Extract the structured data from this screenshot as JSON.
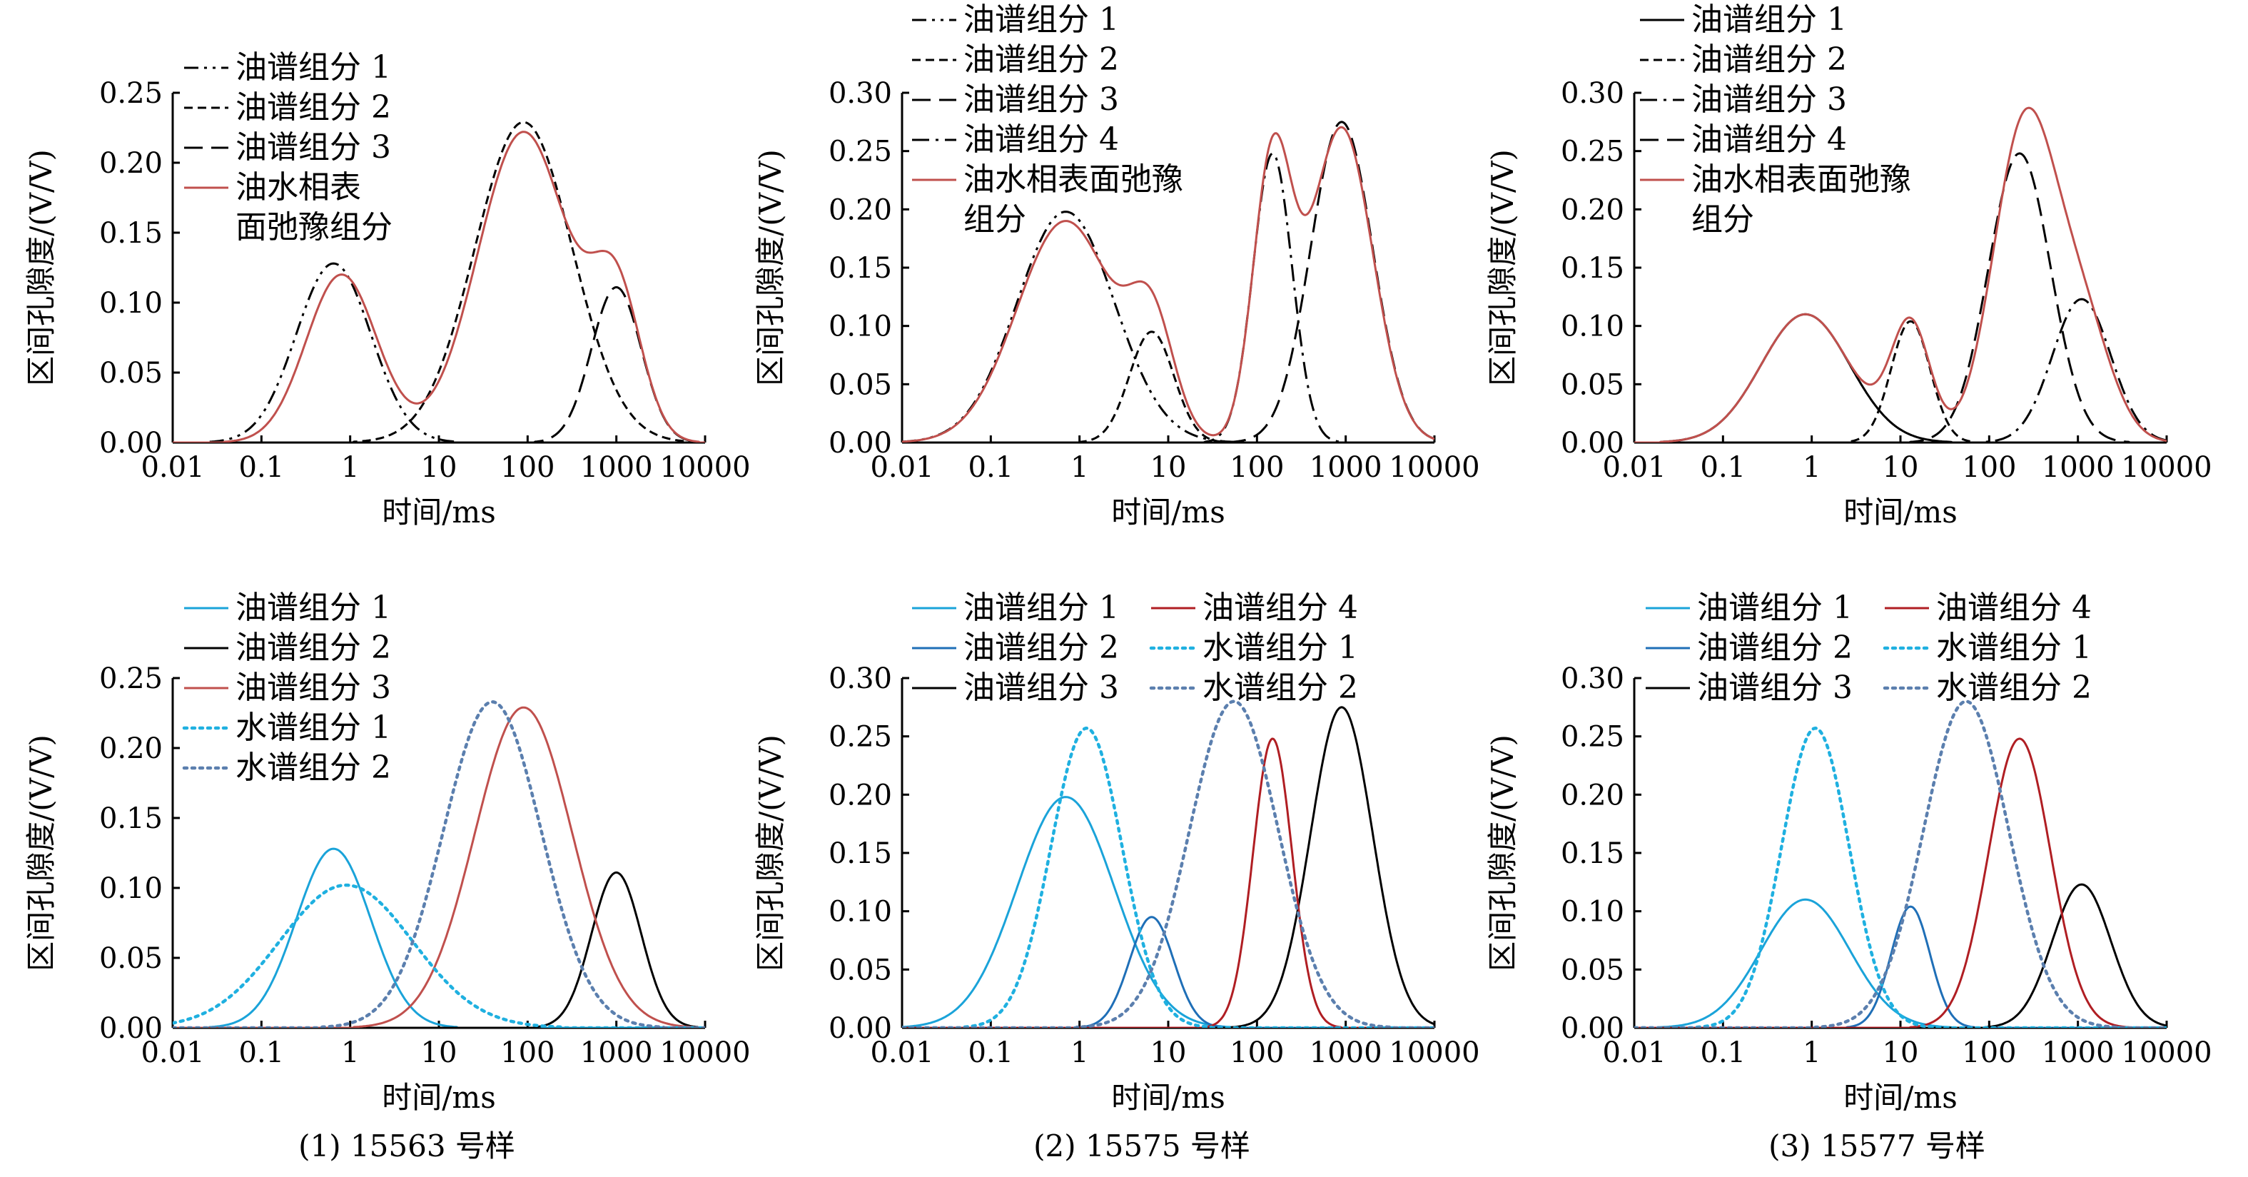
{
  "colors": {
    "bulk": "#c0504d",
    "oil_light_blue": "#1aa3d9",
    "oil_dark_blue": "#1f6fb7",
    "oil_black": "#000000",
    "oil_red": "#b01e23",
    "water_light": "#1fb0e0",
    "water_gray": "#5b7fae"
  },
  "captions": [
    "(1) 15563 号样",
    "(2) 15575 号样",
    "(3) 15577 号样"
  ],
  "chart_data": [
    {
      "type": "line",
      "panel": "top-1",
      "xlabel": "时间/ms",
      "ylabel": "区间孔隙度/(V/V)",
      "xscale": "log",
      "xlim": [
        0.01,
        10000
      ],
      "ylim": [
        0,
        0.25
      ],
      "xticks": [
        "0.01",
        "0.1",
        "1",
        "10",
        "100",
        "1000",
        "10000"
      ],
      "yticks": [
        "0.00",
        "0.05",
        "0.10",
        "0.15",
        "0.20",
        "0.25"
      ],
      "legend_placement": "top-left",
      "series": [
        {
          "name": "油谱组分 1",
          "style": "dashdotdot",
          "color": "#000000",
          "components": [
            [
              0.65,
              0.128,
              0.42
            ]
          ]
        },
        {
          "name": "油谱组分 2",
          "style": "dense-dash",
          "color": "#000000",
          "components": [
            [
              90,
              0.229,
              0.55
            ]
          ]
        },
        {
          "name": "油谱组分 3",
          "style": "long-dash",
          "color": "#000000",
          "components": [
            [
              1000,
              0.111,
              0.28
            ]
          ]
        },
        {
          "name": "油水相表面弛豫组分",
          "style": "solid",
          "color": "#c0504d",
          "components": [
            [
              0.8,
              0.12,
              0.4
            ],
            [
              90,
              0.222,
              0.52
            ],
            [
              1000,
              0.1,
              0.28
            ]
          ]
        }
      ]
    },
    {
      "type": "line",
      "panel": "top-2",
      "xlabel": "时间/ms",
      "ylabel": "区间孔隙度/(V/V)",
      "xscale": "log",
      "xlim": [
        0.01,
        10000
      ],
      "ylim": [
        0,
        0.3
      ],
      "xticks": [
        "0.01",
        "0.1",
        "1",
        "10",
        "100",
        "1000",
        "10000"
      ],
      "yticks": [
        "0.00",
        "0.05",
        "0.10",
        "0.15",
        "0.20",
        "0.25",
        "0.30"
      ],
      "legend_placement": "top-left",
      "series": [
        {
          "name": "油谱组分 1",
          "style": "dashdotdot",
          "color": "#000000",
          "components": [
            [
              0.7,
              0.198,
              0.55
            ]
          ]
        },
        {
          "name": "油谱组分 2",
          "style": "dense-dash",
          "color": "#000000",
          "components": [
            [
              6.5,
              0.095,
              0.25
            ]
          ]
        },
        {
          "name": "油谱组分 3",
          "style": "long-dash",
          "color": "#000000",
          "components": [
            [
              900,
              0.275,
              0.35
            ]
          ]
        },
        {
          "name": "油谱组分 4",
          "style": "dashdot",
          "color": "#000000",
          "components": [
            [
              150,
              0.248,
              0.22
            ]
          ]
        },
        {
          "name": "油水相表面弛豫组分",
          "style": "solid",
          "color": "#c0504d",
          "components": [
            [
              0.7,
              0.19,
              0.55
            ],
            [
              6.5,
              0.09,
              0.25
            ],
            [
              150,
              0.24,
              0.22
            ],
            [
              900,
              0.27,
              0.35
            ]
          ]
        }
      ]
    },
    {
      "type": "line",
      "panel": "top-3",
      "xlabel": "时间/ms",
      "ylabel": "区间孔隙度/(V/V)",
      "xscale": "log",
      "xlim": [
        0.01,
        10000
      ],
      "ylim": [
        0,
        0.3
      ],
      "xticks": [
        "0.01",
        "0.1",
        "1",
        "10",
        "100",
        "1000",
        "10000"
      ],
      "yticks": [
        "0.00",
        "0.05",
        "0.10",
        "0.15",
        "0.20",
        "0.25",
        "0.30"
      ],
      "legend_placement": "top-left",
      "series": [
        {
          "name": "油谱组分 1",
          "style": "solid",
          "color": "#000000",
          "components": [
            [
              0.85,
              0.11,
              0.5
            ]
          ]
        },
        {
          "name": "油谱组分 2",
          "style": "dense-dash",
          "color": "#000000",
          "components": [
            [
              13,
              0.104,
              0.22
            ]
          ]
        },
        {
          "name": "油谱组分 3",
          "style": "dashdot",
          "color": "#000000",
          "components": [
            [
              1100,
              0.123,
              0.33
            ]
          ]
        },
        {
          "name": "油谱组分 4",
          "style": "long-dash",
          "color": "#000000",
          "components": [
            [
              220,
              0.248,
              0.35
            ]
          ]
        },
        {
          "name": "油水相表面弛豫组分",
          "style": "solid",
          "color": "#c0504d",
          "components": [
            [
              0.85,
              0.11,
              0.5
            ],
            [
              13,
              0.1,
              0.22
            ],
            [
              250,
              0.27,
              0.35
            ],
            [
              1100,
              0.1,
              0.33
            ]
          ]
        }
      ]
    },
    {
      "type": "line",
      "panel": "bottom-1",
      "xlabel": "时间/ms",
      "ylabel": "区间孔隙度/(V/V)",
      "xscale": "log",
      "xlim": [
        0.01,
        10000
      ],
      "ylim": [
        0,
        0.25
      ],
      "xticks": [
        "0.01",
        "0.1",
        "1",
        "10",
        "100",
        "1000",
        "10000"
      ],
      "yticks": [
        "0.00",
        "0.05",
        "0.10",
        "0.15",
        "0.20",
        "0.25"
      ],
      "legend_placement": "top-center",
      "series": [
        {
          "name": "油谱组分 1",
          "style": "solid",
          "color": "#1aa3d9",
          "components": [
            [
              0.65,
              0.128,
              0.42
            ]
          ]
        },
        {
          "name": "油谱组分 2",
          "style": "solid",
          "color": "#000000",
          "components": [
            [
              1000,
              0.111,
              0.28
            ]
          ]
        },
        {
          "name": "油谱组分 3",
          "style": "solid",
          "color": "#c0504d",
          "components": [
            [
              90,
              0.229,
              0.55
            ]
          ]
        },
        {
          "name": "水谱组分 1",
          "style": "dotted",
          "color": "#1fb0e0",
          "components": [
            [
              0.9,
              0.102,
              0.75
            ]
          ]
        },
        {
          "name": "水谱组分 2",
          "style": "dotted",
          "color": "#5b7fae",
          "components": [
            [
              40,
              0.233,
              0.55
            ]
          ]
        }
      ]
    },
    {
      "type": "line",
      "panel": "bottom-2",
      "xlabel": "时间/ms",
      "ylabel": "区间孔隙度/(V/V)",
      "xscale": "log",
      "xlim": [
        0.01,
        10000
      ],
      "ylim": [
        0,
        0.3
      ],
      "xticks": [
        "0.01",
        "0.1",
        "1",
        "10",
        "100",
        "1000",
        "10000"
      ],
      "yticks": [
        "0.00",
        "0.05",
        "0.10",
        "0.15",
        "0.20",
        "0.25",
        "0.30"
      ],
      "legend_placement": "top-center",
      "series": [
        {
          "name": "油谱组分 1",
          "style": "solid",
          "color": "#1aa3d9",
          "components": [
            [
              0.7,
              0.198,
              0.55
            ]
          ]
        },
        {
          "name": "油谱组分 2",
          "style": "solid",
          "color": "#1f6fb7",
          "components": [
            [
              6.5,
              0.095,
              0.25
            ]
          ]
        },
        {
          "name": "油谱组分 3",
          "style": "solid",
          "color": "#000000",
          "components": [
            [
              900,
              0.275,
              0.35
            ]
          ]
        },
        {
          "name": "油谱组分 4",
          "style": "solid",
          "color": "#b01e23",
          "components": [
            [
              150,
              0.248,
              0.22
            ]
          ]
        },
        {
          "name": "水谱组分 1",
          "style": "dotted",
          "color": "#1fb0e0",
          "components": [
            [
              1.2,
              0.257,
              0.4
            ]
          ]
        },
        {
          "name": "水谱组分 2",
          "style": "dotted",
          "color": "#5b7fae",
          "components": [
            [
              55,
              0.28,
              0.5
            ]
          ]
        }
      ]
    },
    {
      "type": "line",
      "panel": "bottom-3",
      "xlabel": "时间/ms",
      "ylabel": "区间孔隙度/(V/V)",
      "xscale": "log",
      "xlim": [
        0.01,
        10000
      ],
      "ylim": [
        0,
        0.3
      ],
      "xticks": [
        "0.01",
        "0.1",
        "1",
        "10",
        "100",
        "1000",
        "10000"
      ],
      "yticks": [
        "0.00",
        "0.05",
        "0.10",
        "0.15",
        "0.20",
        "0.25",
        "0.30"
      ],
      "legend_placement": "top-center",
      "series": [
        {
          "name": "油谱组分 1",
          "style": "solid",
          "color": "#1aa3d9",
          "components": [
            [
              0.85,
              0.11,
              0.5
            ]
          ]
        },
        {
          "name": "油谱组分 2",
          "style": "solid",
          "color": "#1f6fb7",
          "components": [
            [
              13,
              0.104,
              0.22
            ]
          ]
        },
        {
          "name": "油谱组分 3",
          "style": "solid",
          "color": "#000000",
          "components": [
            [
              1100,
              0.123,
              0.33
            ]
          ]
        },
        {
          "name": "油谱组分 4",
          "style": "solid",
          "color": "#b01e23",
          "components": [
            [
              220,
              0.248,
              0.35
            ]
          ]
        },
        {
          "name": "水谱组分 1",
          "style": "dotted",
          "color": "#1fb0e0",
          "components": [
            [
              1.1,
              0.257,
              0.38
            ]
          ]
        },
        {
          "name": "水谱组分 2",
          "style": "dotted",
          "color": "#5b7fae",
          "components": [
            [
              55,
              0.28,
              0.48
            ]
          ]
        }
      ]
    }
  ]
}
